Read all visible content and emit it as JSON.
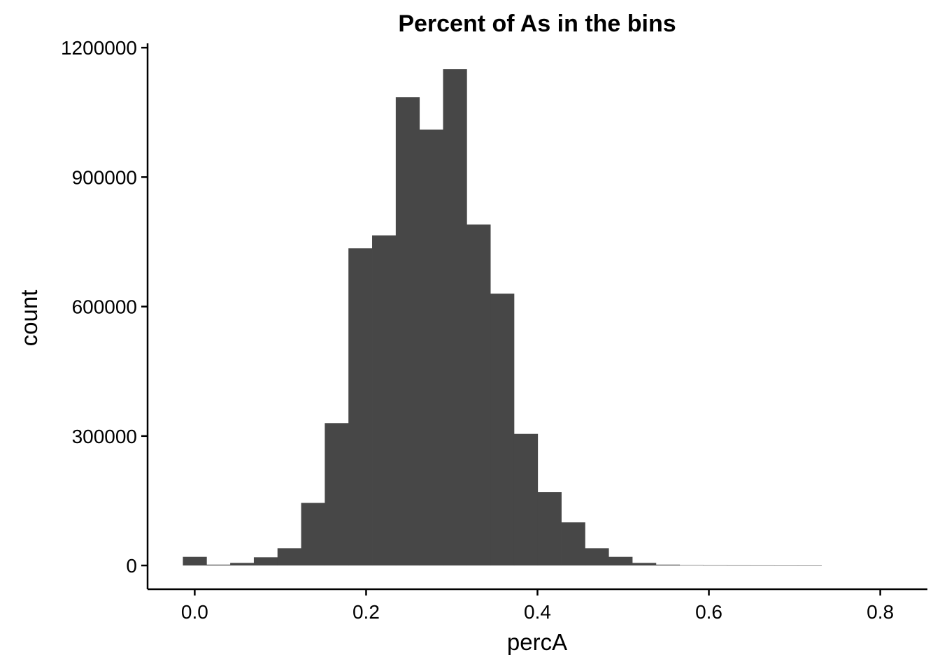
{
  "chart_data": {
    "type": "bar",
    "title": "Percent of As in the bins",
    "xlabel": "percA",
    "ylabel": "count",
    "xlim": [
      -0.055,
      0.855
    ],
    "ylim": [
      -55000,
      1210000
    ],
    "x_ticks": [
      0.0,
      0.2,
      0.4,
      0.6,
      0.8
    ],
    "x_tick_labels": [
      "0.0",
      "0.2",
      "0.4",
      "0.6",
      "0.8"
    ],
    "y_ticks": [
      0,
      300000,
      600000,
      900000,
      1200000
    ],
    "y_tick_labels": [
      "0",
      "300000",
      "600000",
      "900000",
      "1200000"
    ],
    "bar_color": "#474747",
    "grid": false,
    "legend": "none",
    "bin_width": 0.0276,
    "bins": [
      {
        "x": 0.0,
        "count": 20000
      },
      {
        "x": 0.0276,
        "count": 2000
      },
      {
        "x": 0.0552,
        "count": 6000
      },
      {
        "x": 0.0828,
        "count": 19000
      },
      {
        "x": 0.1104,
        "count": 40000
      },
      {
        "x": 0.138,
        "count": 145000
      },
      {
        "x": 0.1656,
        "count": 330000
      },
      {
        "x": 0.1932,
        "count": 735000
      },
      {
        "x": 0.2208,
        "count": 765000
      },
      {
        "x": 0.2484,
        "count": 1085000
      },
      {
        "x": 0.276,
        "count": 1010000
      },
      {
        "x": 0.3036,
        "count": 1150000
      },
      {
        "x": 0.3312,
        "count": 790000
      },
      {
        "x": 0.3588,
        "count": 630000
      },
      {
        "x": 0.3864,
        "count": 305000
      },
      {
        "x": 0.414,
        "count": 170000
      },
      {
        "x": 0.4416,
        "count": 100000
      },
      {
        "x": 0.4692,
        "count": 40000
      },
      {
        "x": 0.4968,
        "count": 20000
      },
      {
        "x": 0.5244,
        "count": 6000
      },
      {
        "x": 0.552,
        "count": 2000
      },
      {
        "x": 0.5796,
        "count": 900
      },
      {
        "x": 0.6072,
        "count": 500
      },
      {
        "x": 0.6348,
        "count": 300
      },
      {
        "x": 0.6624,
        "count": 200
      },
      {
        "x": 0.69,
        "count": 100
      },
      {
        "x": 0.7176,
        "count": 50
      }
    ]
  }
}
